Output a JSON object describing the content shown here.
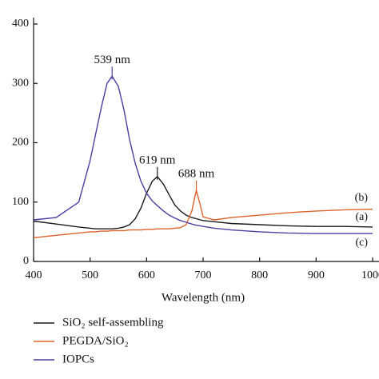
{
  "chart_data": {
    "type": "line",
    "xlabel": "Wavelength (nm)",
    "x": [
      400,
      440,
      480,
      500,
      510,
      520,
      530,
      539,
      550,
      560,
      570,
      580,
      590,
      600,
      610,
      619,
      630,
      640,
      650,
      660,
      670,
      680,
      688,
      695,
      700,
      720,
      750,
      800,
      850,
      900,
      950,
      1000
    ],
    "series": [
      {
        "name": "SiO₂ self-assembling",
        "color": "#1a1a1a",
        "values": [
          68,
          63,
          58,
          56,
          55,
          55,
          55,
          55,
          56,
          58,
          62,
          72,
          90,
          115,
          135,
          143,
          130,
          112,
          95,
          85,
          78,
          74,
          72,
          70,
          69,
          67,
          64,
          62,
          60,
          59,
          59,
          58
        ]
      },
      {
        "name": "PEGDA/SiO₂",
        "color": "#e0622b",
        "values": [
          40,
          44,
          48,
          50,
          50,
          51,
          51,
          52,
          52,
          52,
          53,
          53,
          53,
          54,
          54,
          55,
          55,
          55,
          56,
          57,
          62,
          85,
          120,
          95,
          75,
          70,
          74,
          78,
          82,
          85,
          87,
          88
        ]
      },
      {
        "name": "IOPCs",
        "color": "#4b3fa0",
        "values": [
          70,
          74,
          100,
          170,
          215,
          260,
          300,
          312,
          295,
          255,
          205,
          165,
          135,
          115,
          102,
          94,
          85,
          78,
          73,
          69,
          66,
          63,
          61,
          60,
          59,
          56,
          53,
          50,
          48,
          47,
          47,
          47
        ]
      }
    ],
    "peak_labels": [
      {
        "text": "539 nm",
        "x": 539,
        "y": 312
      },
      {
        "text": "619 nm",
        "x": 619,
        "y": 143
      },
      {
        "text": "688 nm",
        "x": 688,
        "y": 120
      }
    ],
    "curve_labels": [
      "(a)",
      "(b)",
      "(c)"
    ],
    "xlim": [
      400,
      1000
    ],
    "xticks": [
      400,
      500,
      600,
      700,
      800,
      900,
      1000
    ],
    "ylim": [
      0,
      400
    ],
    "yticks": [
      0,
      100,
      200,
      300,
      400
    ]
  }
}
